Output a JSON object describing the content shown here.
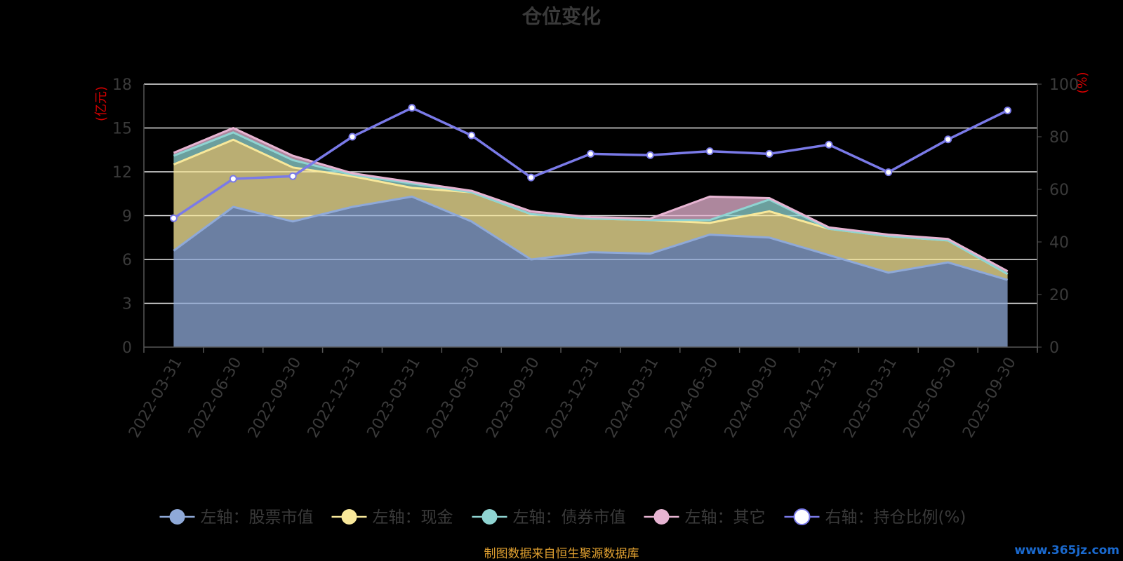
{
  "chart_data": {
    "type": "area",
    "title": "仓位变化",
    "left_unit": "(亿元)",
    "right_unit": "(%)",
    "categories": [
      "2022-03-31",
      "2022-06-30",
      "2022-09-30",
      "2022-12-31",
      "2023-03-31",
      "2023-06-30",
      "2023-09-30",
      "2023-12-31",
      "2024-03-31",
      "2024-06-30",
      "2024-09-30",
      "2024-12-31",
      "2025-03-31",
      "2025-06-30",
      "2025-09-30"
    ],
    "left_axis": {
      "min": 0,
      "max": 18,
      "ticks": [
        0,
        3,
        6,
        9,
        12,
        15,
        18
      ]
    },
    "right_axis": {
      "min": 0,
      "max": 100,
      "ticks": [
        0,
        20,
        40,
        60,
        80,
        100
      ]
    },
    "stacked": true,
    "grid": true,
    "legend_position": "bottom",
    "series": [
      {
        "name": "左轴：股票市值",
        "axis": "left",
        "color": "#8fa9d8",
        "values": [
          6.6,
          9.6,
          8.6,
          9.6,
          10.3,
          8.6,
          6.0,
          6.5,
          6.4,
          7.7,
          7.5,
          6.3,
          5.1,
          5.8,
          4.6
        ]
      },
      {
        "name": "左轴：现金",
        "axis": "left",
        "color": "#f8e89a",
        "values": [
          5.9,
          4.6,
          3.7,
          2.1,
          0.6,
          2.0,
          3.1,
          2.3,
          2.3,
          0.8,
          1.8,
          1.8,
          2.5,
          1.5,
          0.4
        ]
      },
      {
        "name": "左轴：债券市值",
        "axis": "left",
        "color": "#8fd4d2",
        "values": [
          0.6,
          0.5,
          0.5,
          0.1,
          0.3,
          0.0,
          0.0,
          0.0,
          0.0,
          0.2,
          0.8,
          0.0,
          0.0,
          0.0,
          0.0
        ]
      },
      {
        "name": "左轴：其它",
        "axis": "left",
        "color": "#e7b4d2",
        "values": [
          0.2,
          0.3,
          0.3,
          0.1,
          0.1,
          0.1,
          0.2,
          0.1,
          0.1,
          1.6,
          0.1,
          0.1,
          0.1,
          0.1,
          0.2
        ]
      },
      {
        "name": "右轴：持仓比例(%)",
        "axis": "right",
        "color": "#7a7ae8",
        "values": [
          49.0,
          64.0,
          65.0,
          80.0,
          91.0,
          80.5,
          64.5,
          73.5,
          73.0,
          74.5,
          73.5,
          77.0,
          66.5,
          79.0,
          90.0
        ]
      }
    ]
  },
  "footer": {
    "source": "制图数据来自恒生聚源数据库",
    "watermark": "www.365jz.com"
  }
}
